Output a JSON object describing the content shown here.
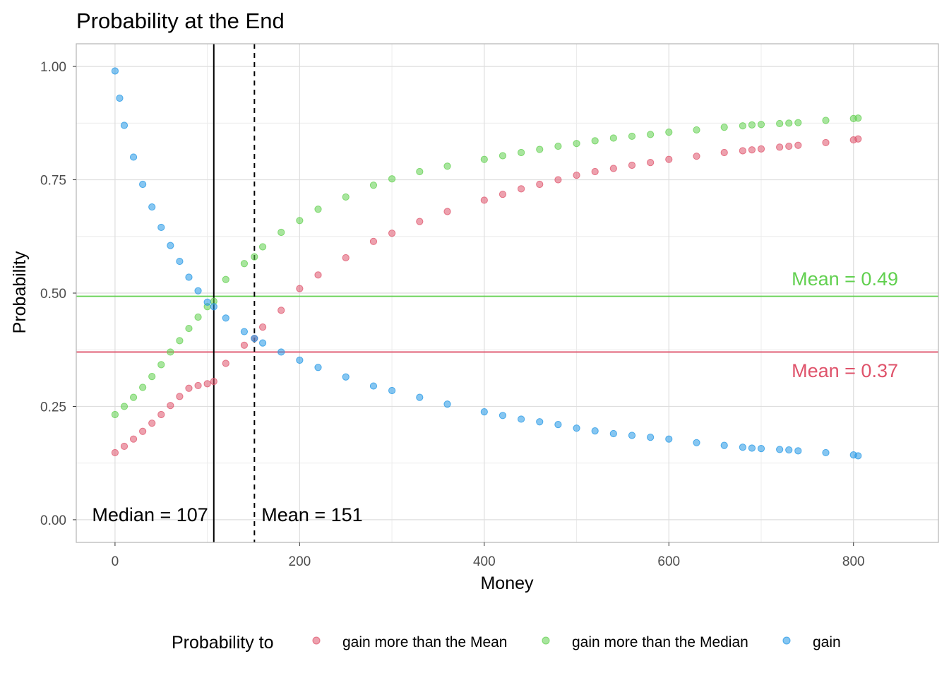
{
  "chart_data": {
    "type": "scatter",
    "title": "Probability at the End",
    "xlabel": "Money",
    "ylabel": "Probability",
    "xlim": [
      -42,
      892
    ],
    "ylim": [
      -0.05,
      1.05
    ],
    "x_ticks": [
      0,
      200,
      400,
      600,
      800
    ],
    "x_tick_labels": [
      "0",
      "200",
      "400",
      "600",
      "800"
    ],
    "y_ticks": [
      0,
      0.25,
      0.5,
      0.75,
      1
    ],
    "y_tick_labels": [
      "0.00",
      "0.25",
      "0.50",
      "0.75",
      "1.00"
    ],
    "grid": true,
    "legend": {
      "title": "Probability to",
      "position": "bottom",
      "entries": [
        "gain more than the Mean",
        "gain more than the Median",
        "gain"
      ]
    },
    "series": [
      {
        "name": "gain more than the Mean",
        "color": "#DF536B",
        "x": [
          0,
          10,
          20,
          30,
          40,
          50,
          60,
          70,
          80,
          90,
          100,
          107,
          120,
          140,
          151,
          160,
          180,
          200,
          220,
          250,
          280,
          300,
          330,
          360,
          400,
          420,
          440,
          460,
          480,
          500,
          520,
          540,
          560,
          580,
          600,
          630,
          660,
          680,
          690,
          700,
          720,
          730,
          740,
          770,
          800,
          805
        ],
        "y": [
          0.148,
          0.162,
          0.178,
          0.195,
          0.213,
          0.232,
          0.252,
          0.272,
          0.29,
          0.296,
          0.3,
          0.305,
          0.345,
          0.385,
          0.4,
          0.425,
          0.462,
          0.51,
          0.54,
          0.578,
          0.614,
          0.632,
          0.658,
          0.68,
          0.705,
          0.718,
          0.73,
          0.74,
          0.75,
          0.76,
          0.768,
          0.775,
          0.782,
          0.788,
          0.795,
          0.802,
          0.81,
          0.814,
          0.816,
          0.818,
          0.822,
          0.824,
          0.826,
          0.832,
          0.838,
          0.84
        ]
      },
      {
        "name": "gain more than the Median",
        "color": "#61D04F",
        "x": [
          0,
          10,
          20,
          30,
          40,
          50,
          60,
          70,
          80,
          90,
          100,
          107,
          120,
          140,
          151,
          160,
          180,
          200,
          220,
          250,
          280,
          300,
          330,
          360,
          400,
          420,
          440,
          460,
          480,
          500,
          520,
          540,
          560,
          580,
          600,
          630,
          660,
          680,
          690,
          700,
          720,
          730,
          740,
          770,
          800,
          805
        ],
        "y": [
          0.232,
          0.25,
          0.27,
          0.292,
          0.316,
          0.342,
          0.37,
          0.395,
          0.422,
          0.447,
          0.47,
          0.482,
          0.53,
          0.565,
          0.58,
          0.602,
          0.634,
          0.66,
          0.685,
          0.712,
          0.738,
          0.752,
          0.768,
          0.78,
          0.795,
          0.803,
          0.81,
          0.817,
          0.824,
          0.83,
          0.836,
          0.842,
          0.846,
          0.85,
          0.855,
          0.86,
          0.866,
          0.869,
          0.871,
          0.872,
          0.874,
          0.875,
          0.876,
          0.881,
          0.885,
          0.886
        ]
      },
      {
        "name": "gain",
        "color": "#2297E6",
        "x": [
          0,
          5,
          10,
          20,
          30,
          40,
          50,
          60,
          70,
          80,
          90,
          100,
          107,
          120,
          140,
          151,
          160,
          180,
          200,
          220,
          250,
          280,
          300,
          330,
          360,
          400,
          420,
          440,
          460,
          480,
          500,
          520,
          540,
          560,
          580,
          600,
          630,
          660,
          680,
          690,
          700,
          720,
          730,
          740,
          770,
          800,
          805
        ],
        "y": [
          0.99,
          0.93,
          0.87,
          0.8,
          0.74,
          0.69,
          0.645,
          0.605,
          0.57,
          0.535,
          0.505,
          0.48,
          0.47,
          0.445,
          0.415,
          0.4,
          0.39,
          0.37,
          0.352,
          0.336,
          0.315,
          0.295,
          0.285,
          0.27,
          0.255,
          0.238,
          0.23,
          0.222,
          0.216,
          0.21,
          0.202,
          0.196,
          0.19,
          0.186,
          0.182,
          0.178,
          0.17,
          0.164,
          0.16,
          0.158,
          0.157,
          0.155,
          0.154,
          0.152,
          0.148,
          0.143,
          0.141
        ]
      }
    ],
    "reference_lines": [
      {
        "axis": "x",
        "value": 107,
        "style": "solid",
        "color": "#000000",
        "label": "Median = 107"
      },
      {
        "axis": "x",
        "value": 151,
        "style": "dashed",
        "color": "#000000",
        "label": "Mean = 151"
      },
      {
        "axis": "y",
        "value": 0.493,
        "style": "solid",
        "color": "#61D04F",
        "label": "Mean = 0.49"
      },
      {
        "axis": "y",
        "value": 0.37,
        "style": "solid",
        "color": "#DF536B",
        "label": "Mean = 0.37"
      }
    ]
  }
}
